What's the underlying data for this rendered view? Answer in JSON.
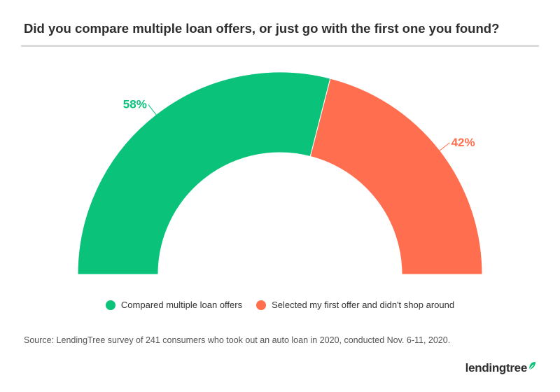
{
  "title": "Did you compare multiple loan offers, or just go with the first one you found?",
  "source": "Source: LendingTree survey of 241 consumers who took out an auto loan in 2020, conducted Nov. 6-11, 2020.",
  "logo": {
    "text": "lendingtree",
    "icon": "leaf-icon",
    "color": "#2e2e2e",
    "leaf_color": "#08c177"
  },
  "chart_data": {
    "type": "pie",
    "variant": "semi-donut",
    "categories": [
      "Compared multiple loan offers",
      "Selected my first offer and didn't shop around"
    ],
    "values": [
      58,
      42
    ],
    "labels": [
      "58%",
      "42%"
    ],
    "colors": [
      "#0bc27b",
      "#ff6f4f"
    ],
    "legend": "bottom-center"
  }
}
